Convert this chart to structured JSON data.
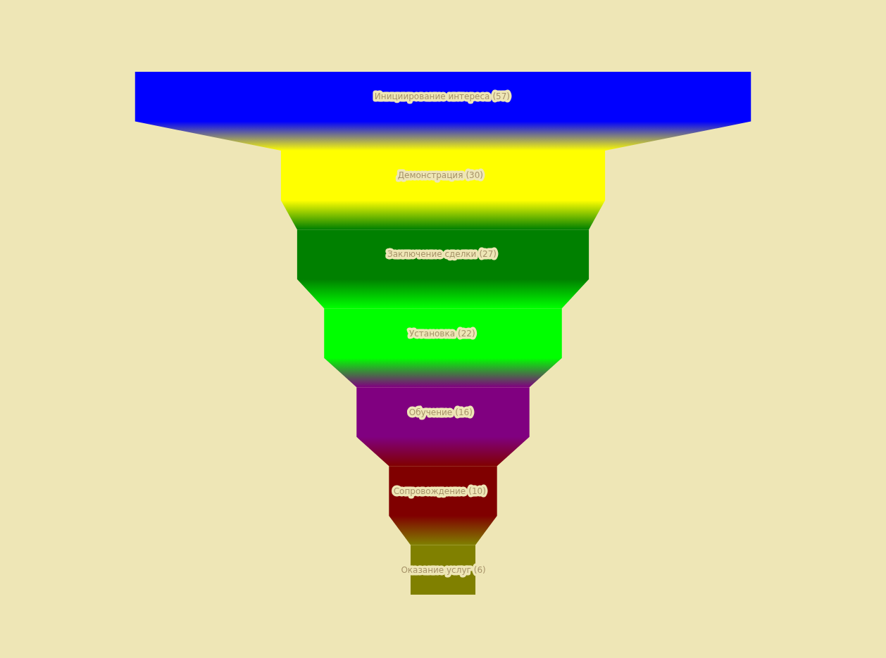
{
  "chart_data": {
    "type": "other",
    "categories": [
      "Инициирование интереса",
      "Демонстрация",
      "Заключение сделки",
      "Установка",
      "Обучение",
      "Сопровождение",
      "Оказание услуг"
    ],
    "values": [
      57,
      30,
      27,
      22,
      16,
      10,
      6
    ],
    "value_labels": [
      "(57)",
      "(30)",
      "(27)",
      "(22)",
      "(16)",
      "(10)",
      "(6)"
    ],
    "colors": [
      "#0000ff",
      "#ffff00",
      "#008000",
      "#00ff00",
      "#800080",
      "#800000",
      "#808000"
    ]
  }
}
